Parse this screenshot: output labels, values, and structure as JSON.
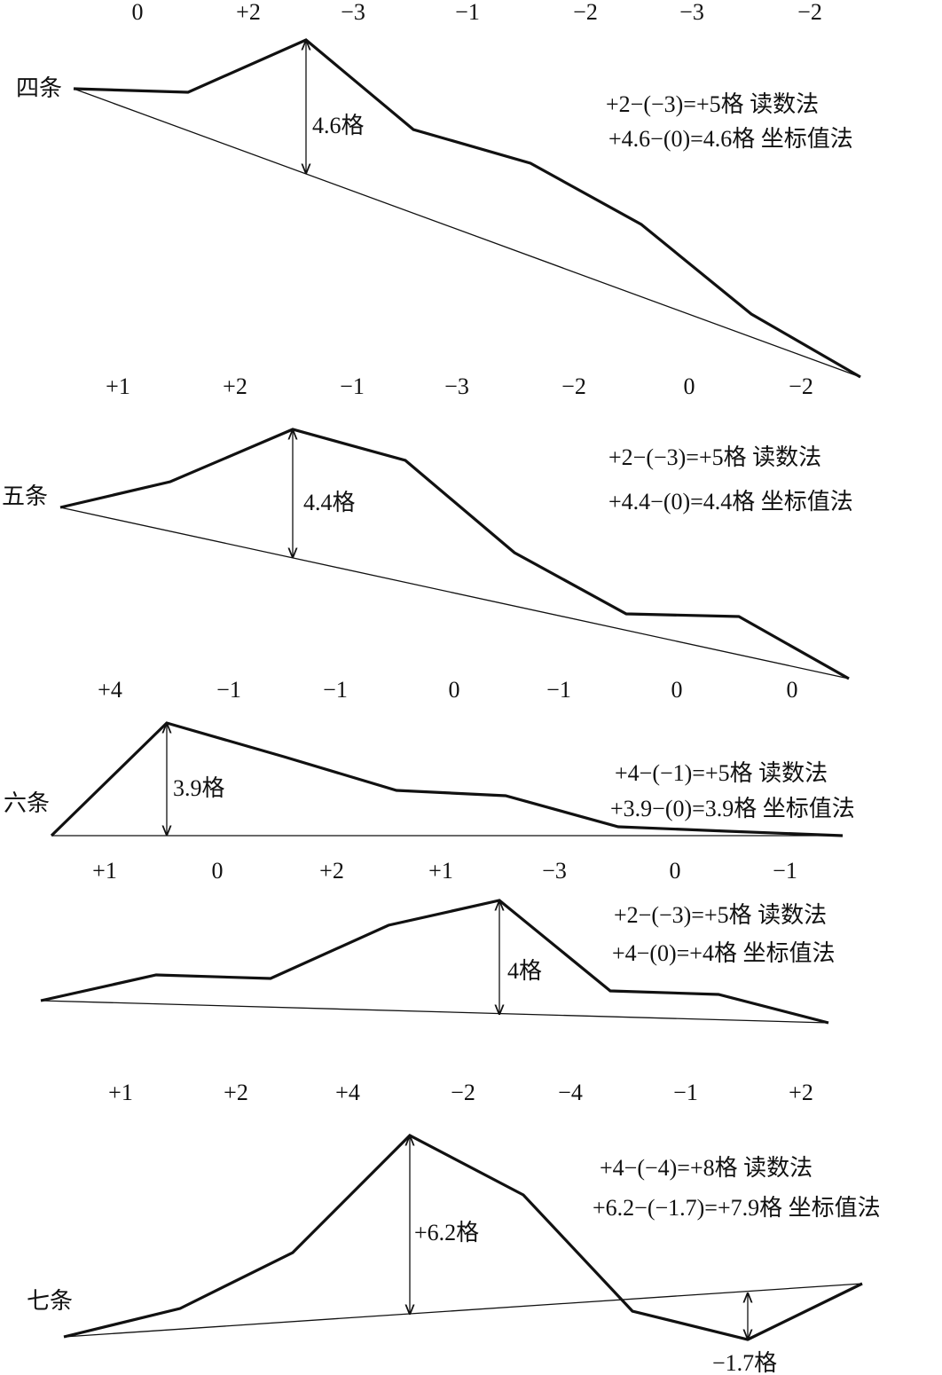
{
  "colors": {
    "line": "#111111",
    "background": "#ffffff"
  },
  "panels": [
    {
      "name": "四条",
      "readings": [
        "0",
        "+2",
        "−3",
        "−1",
        "−2",
        "−3",
        "−2"
      ],
      "deviation_labels": [
        "4.6格"
      ],
      "formula_reading": "+2−(−3)=+5格  读数法",
      "formula_coordinate": "+4.6−(0)=4.6格  坐标值法"
    },
    {
      "name": "五条",
      "readings": [
        "+1",
        "+2",
        "−1",
        "−3",
        "−2",
        "0",
        "−2"
      ],
      "deviation_labels": [
        "4.4格"
      ],
      "formula_reading": "+2−(−3)=+5格  读数法",
      "formula_coordinate": "+4.4−(0)=4.4格  坐标值法"
    },
    {
      "name": "六条",
      "readings": [
        "+4",
        "−1",
        "−1",
        "0",
        "−1",
        "0",
        "0"
      ],
      "deviation_labels": [
        "3.9格"
      ],
      "formula_reading": "+4−(−1)=+5格  读数法",
      "formula_coordinate": "+3.9−(0)=3.9格  坐标值法"
    },
    {
      "name": "",
      "readings": [
        "+1",
        "0",
        "+2",
        "+1",
        "−3",
        "0",
        "−1"
      ],
      "deviation_labels": [
        "4格"
      ],
      "formula_reading": "+2−(−3)=+5格  读数法",
      "formula_coordinate": "+4−(0)=+4格      坐标值法"
    },
    {
      "name": "七条",
      "readings": [
        "+1",
        "+2",
        "+4",
        "−2",
        "−4",
        "−1",
        "+2"
      ],
      "deviation_labels": [
        "+6.2格",
        "−1.7格"
      ],
      "formula_reading": "+4−(−4)=+8格  读数法",
      "formula_coordinate": "+6.2−(−1.7)=+7.9格  坐标值法"
    }
  ]
}
